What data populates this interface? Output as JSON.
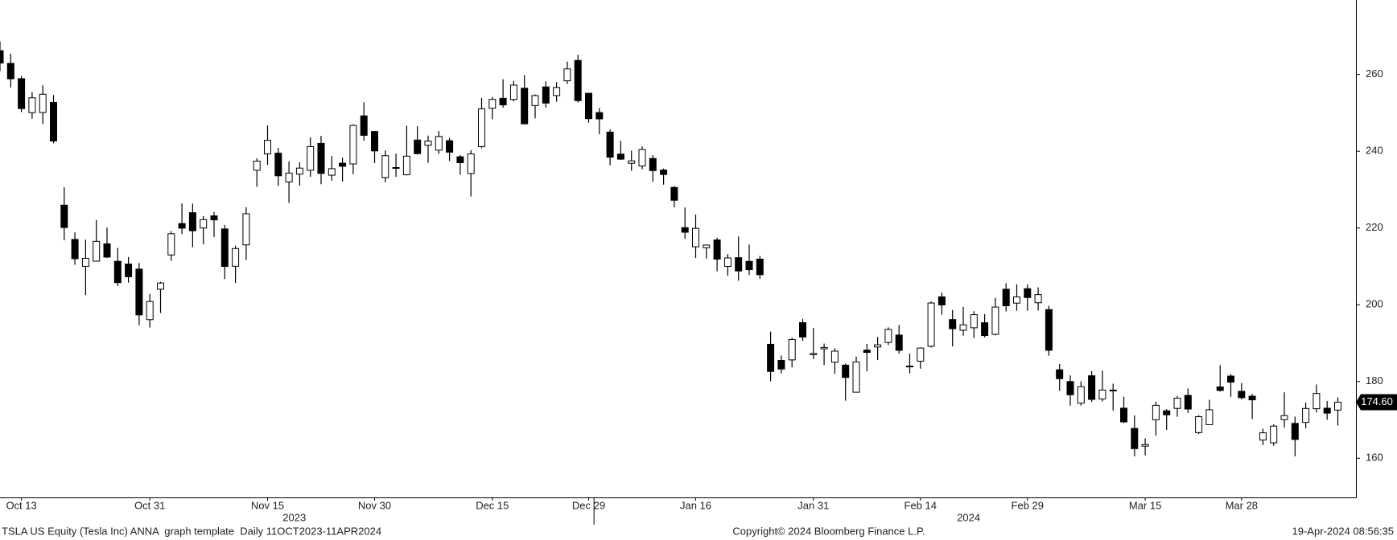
{
  "chart_data": {
    "type": "candlestick",
    "x": [
      "2023-10-11",
      "2023-10-12",
      "2023-10-13",
      "2023-10-16",
      "2023-10-17",
      "2023-10-18",
      "2023-10-19",
      "2023-10-20",
      "2023-10-23",
      "2023-10-24",
      "2023-10-25",
      "2023-10-26",
      "2023-10-27",
      "2023-10-30",
      "2023-10-31",
      "2023-11-01",
      "2023-11-02",
      "2023-11-03",
      "2023-11-06",
      "2023-11-07",
      "2023-11-08",
      "2023-11-09",
      "2023-11-10",
      "2023-11-13",
      "2023-11-14",
      "2023-11-15",
      "2023-11-16",
      "2023-11-17",
      "2023-11-20",
      "2023-11-21",
      "2023-11-22",
      "2023-11-24",
      "2023-11-27",
      "2023-11-28",
      "2023-11-29",
      "2023-11-30",
      "2023-12-01",
      "2023-12-04",
      "2023-12-05",
      "2023-12-06",
      "2023-12-07",
      "2023-12-08",
      "2023-12-11",
      "2023-12-12",
      "2023-12-13",
      "2023-12-14",
      "2023-12-15",
      "2023-12-18",
      "2023-12-19",
      "2023-12-20",
      "2023-12-21",
      "2023-12-22",
      "2023-12-26",
      "2023-12-27",
      "2023-12-28",
      "2023-12-29",
      "2024-01-02",
      "2024-01-03",
      "2024-01-04",
      "2024-01-05",
      "2024-01-08",
      "2024-01-09",
      "2024-01-10",
      "2024-01-11",
      "2024-01-12",
      "2024-01-16",
      "2024-01-17",
      "2024-01-18",
      "2024-01-19",
      "2024-01-22",
      "2024-01-23",
      "2024-01-24",
      "2024-01-25",
      "2024-01-26",
      "2024-01-29",
      "2024-01-30",
      "2024-01-31",
      "2024-02-01",
      "2024-02-02",
      "2024-02-05",
      "2024-02-06",
      "2024-02-07",
      "2024-02-08",
      "2024-02-09",
      "2024-02-12",
      "2024-02-13",
      "2024-02-14",
      "2024-02-15",
      "2024-02-16",
      "2024-02-20",
      "2024-02-21",
      "2024-02-22",
      "2024-02-23",
      "2024-02-26",
      "2024-02-27",
      "2024-02-28",
      "2024-02-29",
      "2024-03-01",
      "2024-03-04",
      "2024-03-05",
      "2024-03-06",
      "2024-03-07",
      "2024-03-08",
      "2024-03-11",
      "2024-03-12",
      "2024-03-13",
      "2024-03-14",
      "2024-03-15",
      "2024-03-18",
      "2024-03-19",
      "2024-03-20",
      "2024-03-21",
      "2024-03-22",
      "2024-03-25",
      "2024-03-26",
      "2024-03-27",
      "2024-03-28",
      "2024-04-01",
      "2024-04-02",
      "2024-04-03",
      "2024-04-04",
      "2024-04-05",
      "2024-04-08",
      "2024-04-09",
      "2024-04-10",
      "2024-04-11"
    ],
    "open": [
      266.2,
      262.9,
      258.9,
      250.05,
      250.1,
      252.7,
      225.95,
      217.01,
      210,
      211.36,
      215.88,
      211.32,
      210.6,
      209.28,
      196.12,
      204.04,
      212.97,
      221.15,
      223.98,
      219.98,
      223.15,
      219.75,
      210.03,
      215.6,
      235.03,
      239.29,
      239.49,
      232,
      234.04,
      235.04,
      242.04,
      233.75,
      236.89,
      236.68,
      249.21,
      245.14,
      233.14,
      235.75,
      233.87,
      242.92,
      241.55,
      240.27,
      242.74,
      238.55,
      234.19,
      241.22,
      251.21,
      253.78,
      253.48,
      256.41,
      251.9,
      256.76,
      254.49,
      258.35,
      263.66,
      255.1,
      250.08,
      244.98,
      239.25,
      236.86,
      236.14,
      238.11,
      235.1,
      230.57,
      220.08,
      215.1,
      214.86,
      216.88,
      209.99,
      212.26,
      211.3,
      211.88,
      189.7,
      185.5,
      185.63,
      195.33,
      187,
      188.5,
      185.04,
      184.26,
      177.21,
      188.18,
      189,
      190.18,
      192.11,
      183.99,
      185.3,
      189.16,
      202.06,
      196.13,
      193.36,
      194,
      195.31,
      192.29,
      204.04,
      200.42,
      204.18,
      200.52,
      198.73,
      183.05,
      179.99,
      174.35,
      181.5,
      175.45,
      177.77,
      173.05,
      167.77,
      163.16,
      170.02,
      172.36,
      173,
      176.39,
      166.69,
      168.76,
      178.58,
      181.41,
      177.45,
      176.17,
      164.75,
      164.02,
      170.07,
      169.08,
      169.34,
      172.91,
      173.04,
      172.55
    ],
    "high": [
      268.6,
      265.4,
      259.6,
      255.4,
      257.18,
      254.63,
      230.61,
      218.86,
      216.98,
      222.05,
      220.1,
      214.8,
      212.41,
      210.88,
      202.8,
      205.99,
      219.2,
      226.37,
      226.32,
      223.12,
      224.15,
      220.8,
      215.38,
      225.4,
      238.14,
      246.7,
      240.88,
      237.39,
      237.1,
      243.62,
      244.01,
      238.75,
      238.33,
      247,
      252.75,
      245.22,
      240.19,
      239.37,
      246.66,
      246.57,
      244.08,
      245.27,
      243.44,
      238.99,
      240.3,
      253.88,
      254.13,
      258.74,
      258.34,
      259.84,
      254.8,
      258.22,
      257.97,
      263.34,
      265.13,
      255.19,
      251.25,
      245.68,
      242.7,
      240.12,
      241.25,
      238.96,
      235.5,
      230.93,
      225.34,
      223.49,
      215.67,
      217.45,
      213.19,
      217.8,
      215.65,
      212.73,
      193,
      186.78,
      191.48,
      196.36,
      193.97,
      189.88,
      188.69,
      184.68,
      186.49,
      189.79,
      191.62,
      194.12,
      194.73,
      187.26,
      188.89,
      200.88,
      203.17,
      198.6,
      199.44,
      198.32,
      197.57,
      201.78,
      205.6,
      205.3,
      205.28,
      204.52,
      199.75,
      184.59,
      181.58,
      180.04,
      182.73,
      182.87,
      179.43,
      176.05,
      171.17,
      165.18,
      174.72,
      172.82,
      176.25,
      178.18,
      171.2,
      175.24,
      184.25,
      181.91,
      179.57,
      176.75,
      167.69,
      168.82,
      177.19,
      170.86,
      174.5,
      179.22,
      174.93,
      175.88
    ],
    "low": [
      260.9,
      256.6,
      250.2,
      248.48,
      247.08,
      242.08,
      216.78,
      210.42,
      202.51,
      211.3,
      212.2,
      204.88,
      205.77,
      194.67,
      194.07,
      197.85,
      211.45,
      218.4,
      215,
      215.72,
      217.64,
      206.68,
      205.69,
      211.61,
      230.72,
      236.45,
      230.96,
      226.54,
      231.02,
      233.34,
      231.4,
      232.33,
      232.1,
      234.01,
      242.76,
      236.91,
      231.9,
      233.29,
      233.7,
      239.17,
      236.98,
      239.27,
      237.45,
      233.87,
      228.2,
      240.79,
      248.3,
      251.36,
      253.01,
      247,
      248.55,
      251.37,
      252.91,
      257.52,
      252.71,
      247.43,
      244.41,
      236.32,
      237.73,
      234.9,
      235.3,
      232.04,
      231.29,
      225.37,
      217.15,
      212.18,
      212.01,
      208.74,
      207.56,
      206.27,
      207.75,
      206.77,
      180.06,
      182.1,
      183.67,
      190.61,
      185.85,
      184.28,
      182,
      175.01,
      177.11,
      182.68,
      185.58,
      189.48,
      187.28,
      182.11,
      183.35,
      188.86,
      197.4,
      189.13,
      191.95,
      191.36,
      191.5,
      192,
      198.26,
      198.44,
      198.45,
      198.5,
      186.72,
      177.57,
      173.7,
      173.7,
      174.7,
      174.8,
      172.41,
      169.15,
      160.51,
      160.76,
      165.9,
      167.42,
      170.82,
      171.8,
      166.3,
      168.73,
      177.38,
      176,
      175.3,
      170.21,
      163.43,
      163.28,
      168.01,
      160.51,
      167.79,
      171.92,
      170.01,
      168.51
    ],
    "close": [
      262.99,
      258.87,
      251.12,
      253.92,
      254.85,
      242.68,
      220.11,
      211.99,
      212.08,
      216.52,
      212.42,
      205.76,
      207.3,
      197.36,
      200.84,
      205.66,
      218.51,
      219.96,
      219.27,
      222.18,
      222.11,
      209.98,
      214.65,
      223.71,
      237.41,
      242.84,
      233.59,
      234.3,
      235.6,
      241.2,
      234.21,
      235.45,
      236.08,
      246.72,
      244.14,
      240.08,
      238.83,
      235.58,
      238.72,
      239.37,
      242.64,
      243.84,
      239.74,
      237.01,
      239.29,
      251.05,
      253.5,
      252.08,
      257.22,
      247.14,
      254.5,
      252.54,
      256.61,
      261.44,
      253.18,
      248.48,
      248.42,
      238.45,
      237.93,
      237.49,
      240.45,
      234.96,
      233.94,
      227.22,
      218.89,
      219.91,
      215.55,
      211.88,
      212.19,
      208.8,
      209.14,
      207.83,
      182.63,
      183.25,
      190.93,
      191.59,
      187.29,
      188.86,
      187.91,
      181.06,
      185.1,
      187.58,
      189.56,
      193.57,
      188.13,
      184.02,
      188.71,
      200.45,
      199.95,
      193.76,
      194.77,
      197.41,
      191.97,
      199.4,
      199.73,
      202.04,
      201.88,
      202.64,
      188.14,
      180.74,
      176.54,
      178.65,
      175.34,
      177.77,
      177.54,
      169.48,
      162.5,
      163.57,
      173.8,
      171.32,
      175.66,
      172.82,
      170.83,
      172.63,
      177.67,
      179.83,
      175.79,
      175.22,
      166.63,
      168.38,
      171.11,
      164.9,
      172.98,
      176.88,
      171.76,
      174.6
    ],
    "up_color": "#ffffff",
    "down_color": "#000000",
    "ylim": [
      149.8,
      279.4
    ],
    "yticks": [
      160,
      180,
      200,
      220,
      240,
      260
    ],
    "xticks": [
      {
        "value": "2023-10-13",
        "label": "Oct 13"
      },
      {
        "value": "2023-10-31",
        "label": "Oct 31"
      },
      {
        "value": "2023-11-15",
        "label": "Nov 15"
      },
      {
        "value": "2023-11-30",
        "label": "Nov 30"
      },
      {
        "value": "2023-12-15",
        "label": "Dec 15"
      },
      {
        "value": "2023-12-29",
        "label": "Dec 29"
      },
      {
        "value": "2024-01-16",
        "label": "Jan 16"
      },
      {
        "value": "2024-01-31",
        "label": "Jan 31"
      },
      {
        "value": "2024-02-14",
        "label": "Feb 14"
      },
      {
        "value": "2024-02-29",
        "label": "Feb 29"
      },
      {
        "value": "2024-03-15",
        "label": "Mar 15"
      },
      {
        "value": "2024-03-28",
        "label": "Mar 28"
      }
    ],
    "year_labels": [
      "2023",
      "2024"
    ],
    "last_price": {
      "value": 174.6,
      "label": "174.60"
    },
    "footer": {
      "left": "TSLA US Equity (Tesla Inc) ANNA  graph template  Daily 11OCT2023-11APR2024",
      "center": "Copyright© 2024 Bloomberg Finance L.P.",
      "right": "19-Apr-2024 08:56:35"
    }
  }
}
